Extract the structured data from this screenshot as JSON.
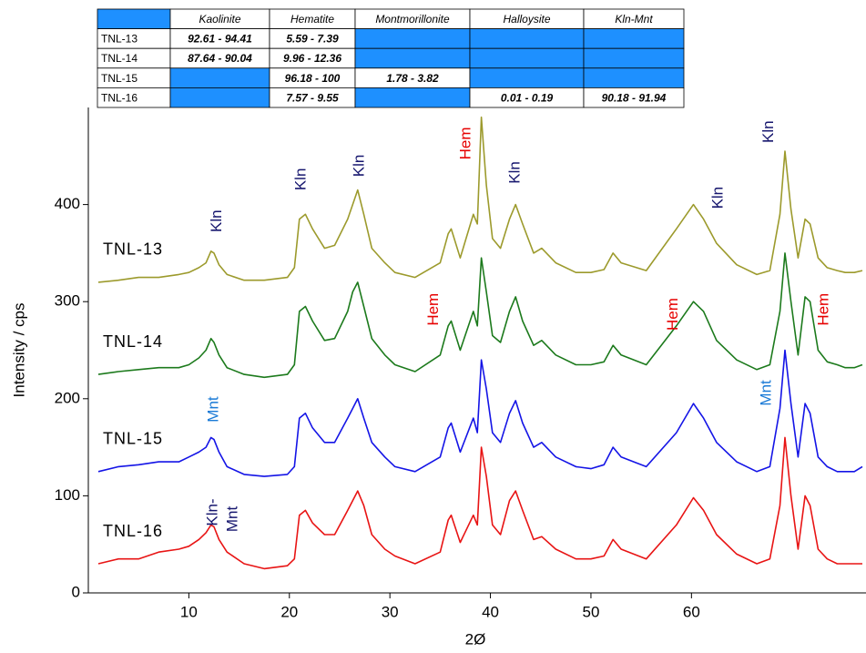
{
  "chart_data": {
    "type": "line",
    "xlabel": "2Ø",
    "ylabel": "Intensity / cps",
    "xlim": [
      0,
      77
    ],
    "xticks": [
      10,
      20,
      30,
      40,
      50,
      60
    ],
    "ylim": [
      0,
      500
    ],
    "yticks": [
      0,
      100,
      200,
      300,
      400
    ],
    "x": [
      1,
      3,
      5,
      7,
      9,
      10,
      11,
      11.7,
      12.2,
      12.5,
      13,
      13.8,
      15.5,
      17.5,
      19.8,
      20.5,
      21,
      21.6,
      22.3,
      23.5,
      24.5,
      25.8,
      26.3,
      26.8,
      27.4,
      28.2,
      29.5,
      30.5,
      32.5,
      35,
      35.8,
      36.1,
      37,
      38.3,
      38.7,
      39.1,
      39.6,
      40.2,
      41,
      41.9,
      42.5,
      43.2,
      44.3,
      45.1,
      46.5,
      48.5,
      50,
      51.3,
      52.2,
      53,
      55.5,
      58.5,
      60.2,
      61.2,
      62.5,
      64.5,
      66.5,
      67.8,
      68.8,
      69.3,
      69.9,
      70.6,
      71.3,
      71.8,
      72.6,
      73.5,
      74.5,
      75.3,
      76.2,
      77
    ],
    "series": [
      {
        "name": "TNL-13",
        "color": "#9c9a2c",
        "values": [
          320,
          322,
          325,
          325,
          328,
          330,
          335,
          340,
          352,
          350,
          338,
          328,
          322,
          322,
          325,
          335,
          385,
          390,
          375,
          355,
          358,
          385,
          400,
          415,
          390,
          355,
          340,
          330,
          325,
          340,
          370,
          375,
          345,
          390,
          380,
          490,
          420,
          365,
          355,
          385,
          400,
          380,
          350,
          355,
          340,
          330,
          330,
          333,
          350,
          340,
          332,
          375,
          400,
          385,
          360,
          338,
          328,
          332,
          390,
          455,
          395,
          345,
          385,
          380,
          345,
          335,
          332,
          330,
          330,
          332
        ]
      },
      {
        "name": "TNL-14",
        "color": "#1c7a1c",
        "values": [
          225,
          228,
          230,
          232,
          232,
          235,
          242,
          250,
          262,
          258,
          245,
          232,
          225,
          222,
          225,
          235,
          290,
          295,
          280,
          260,
          262,
          290,
          310,
          320,
          295,
          262,
          245,
          235,
          228,
          245,
          275,
          280,
          250,
          290,
          275,
          345,
          310,
          265,
          258,
          290,
          305,
          280,
          255,
          260,
          245,
          235,
          235,
          238,
          255,
          245,
          235,
          275,
          300,
          290,
          260,
          240,
          230,
          235,
          290,
          350,
          300,
          245,
          305,
          300,
          250,
          238,
          235,
          232,
          232,
          235
        ]
      },
      {
        "name": "TNL-15",
        "color": "#1414e6",
        "values": [
          125,
          130,
          132,
          135,
          135,
          140,
          145,
          150,
          160,
          158,
          145,
          130,
          122,
          120,
          122,
          130,
          180,
          185,
          170,
          155,
          155,
          180,
          190,
          200,
          180,
          155,
          140,
          130,
          125,
          140,
          170,
          175,
          145,
          180,
          165,
          240,
          210,
          165,
          155,
          185,
          198,
          175,
          150,
          155,
          140,
          130,
          128,
          132,
          150,
          140,
          130,
          165,
          195,
          180,
          155,
          135,
          125,
          130,
          190,
          250,
          195,
          140,
          195,
          185,
          140,
          130,
          125,
          125,
          125,
          130
        ]
      },
      {
        "name": "TNL-16",
        "color": "#e81414",
        "values": [
          30,
          35,
          35,
          42,
          45,
          48,
          55,
          62,
          70,
          68,
          55,
          42,
          30,
          25,
          28,
          35,
          80,
          85,
          72,
          60,
          60,
          85,
          95,
          105,
          90,
          60,
          45,
          38,
          30,
          42,
          75,
          80,
          52,
          80,
          70,
          150,
          120,
          70,
          60,
          95,
          105,
          85,
          55,
          58,
          45,
          35,
          35,
          38,
          55,
          45,
          35,
          70,
          98,
          85,
          60,
          40,
          30,
          35,
          90,
          160,
          100,
          45,
          100,
          90,
          45,
          35,
          30,
          30,
          30,
          30
        ]
      }
    ],
    "annotations": [
      {
        "text": "Kln",
        "x": 12.8,
        "y": 383,
        "color": "#16166e"
      },
      {
        "text": "Kln",
        "x": 21.2,
        "y": 426,
        "color": "#16166e"
      },
      {
        "text": "Kln",
        "x": 27,
        "y": 440,
        "color": "#16166e"
      },
      {
        "text": "Hem",
        "x": 37.6,
        "y": 463,
        "color": "#e60000"
      },
      {
        "text": "Kln",
        "x": 42.5,
        "y": 433,
        "color": "#16166e"
      },
      {
        "text": "Kln",
        "x": 62.7,
        "y": 407,
        "color": "#16166e"
      },
      {
        "text": "Kln",
        "x": 67.7,
        "y": 475,
        "color": "#16166e"
      },
      {
        "text": "Hem",
        "x": 34.4,
        "y": 292,
        "color": "#e60000"
      },
      {
        "text": "Hem",
        "x": 58.2,
        "y": 287,
        "color": "#e60000"
      },
      {
        "text": "Hem",
        "x": 73.2,
        "y": 292,
        "color": "#e60000"
      },
      {
        "text": "Mnt",
        "x": 12.5,
        "y": 189,
        "color": "#1a7ad6"
      },
      {
        "text": "Mnt",
        "x": 67.5,
        "y": 206,
        "color": "#1a7ad6"
      },
      {
        "text": "Kln-",
        "x": 12.4,
        "y": 83,
        "color": "#16166e"
      },
      {
        "text": "Mnt",
        "x": 14.4,
        "y": 76,
        "color": "#16166e"
      }
    ]
  },
  "table": {
    "header": [
      null,
      "Kaolinite",
      "Hematite",
      "Montmorillonite",
      "Halloysite",
      "Kln-Mnt"
    ],
    "rows": [
      [
        "TNL-13",
        "92.61 - 94.41",
        "5.59 - 7.39",
        null,
        null,
        null
      ],
      [
        "TNL-14",
        "87.64 - 90.04",
        "9.96 - 12.36",
        null,
        null,
        null
      ],
      [
        "TNL-15",
        null,
        "96.18 - 100",
        "1.78 - 3.82",
        null,
        null
      ],
      [
        "TNL-16",
        null,
        "7.57 - 9.55",
        null,
        "0.01 - 0.19",
        "90.18 - 91.94"
      ]
    ]
  }
}
